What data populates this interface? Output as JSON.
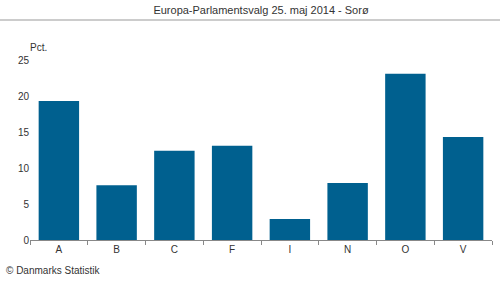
{
  "chart_data": {
    "type": "bar",
    "title": "Europa-Parlamentsvalg 25. maj 2014 - Sorø",
    "ylabel": "Pct.",
    "source": "© Danmarks Statistik",
    "categories": [
      "A",
      "B",
      "C",
      "F",
      "I",
      "N",
      "O",
      "V"
    ],
    "values": [
      19.3,
      7.6,
      12.4,
      13.1,
      2.9,
      7.9,
      23.1,
      14.3
    ],
    "color": "#00608f",
    "ylim": [
      0,
      25
    ],
    "yticks": [
      0,
      5,
      10,
      15,
      20,
      25
    ],
    "grid": false
  }
}
